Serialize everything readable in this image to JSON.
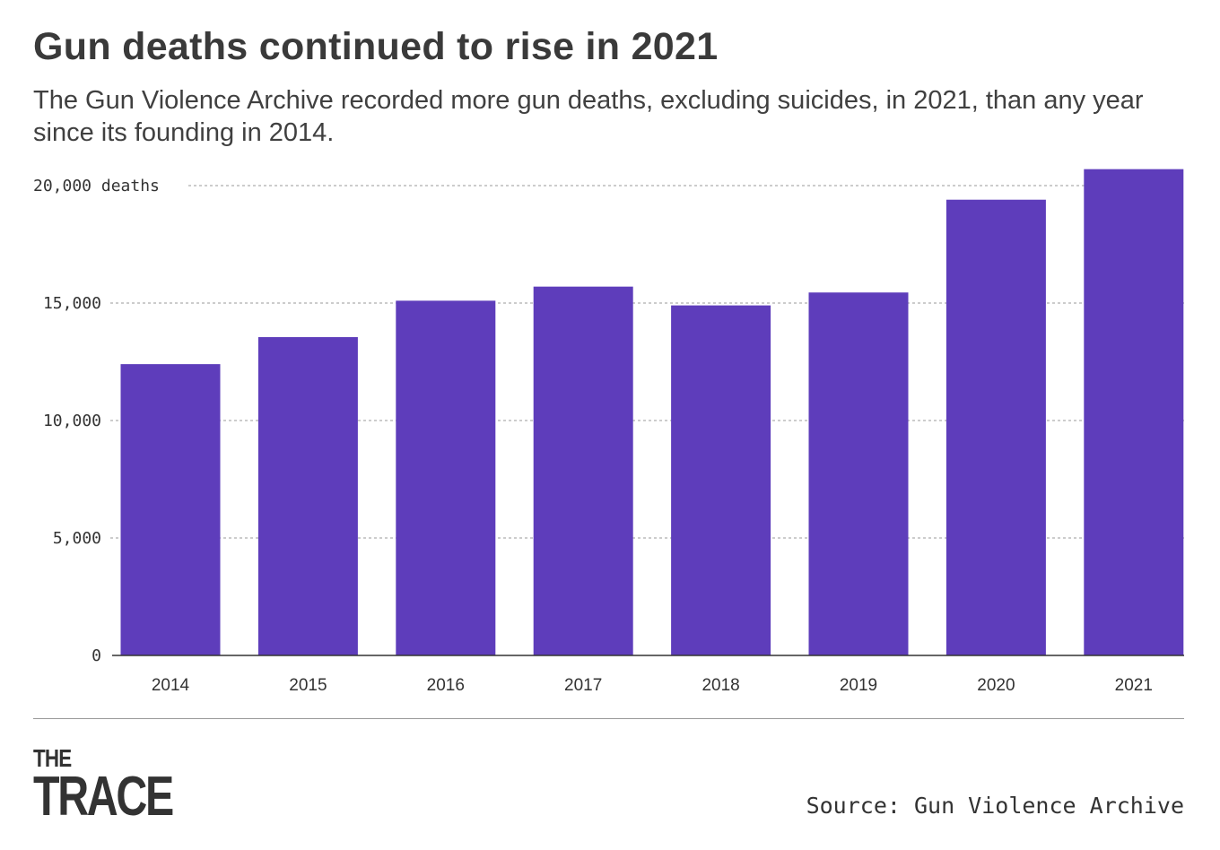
{
  "title": "Gun deaths continued to rise in 2021",
  "subtitle": "The Gun Violence Archive recorded more gun deaths, excluding suicides, in 2021, than any year since its founding in 2014.",
  "logo": {
    "line1": "THE",
    "line2": "TRACE"
  },
  "source": "Source: Gun Violence Archive",
  "chart_data": {
    "type": "bar",
    "categories": [
      "2014",
      "2015",
      "2016",
      "2017",
      "2018",
      "2019",
      "2020",
      "2021"
    ],
    "values": [
      12400,
      13550,
      15100,
      15700,
      14900,
      15450,
      19400,
      20700
    ],
    "ylim": [
      0,
      20000
    ],
    "yticks": [
      0,
      5000,
      10000,
      15000,
      20000
    ],
    "ytick_labels": [
      "0",
      "5,000",
      "10,000",
      "15,000",
      "20,000 deaths"
    ],
    "grid": true,
    "bar_color": "#5e3dbb"
  }
}
